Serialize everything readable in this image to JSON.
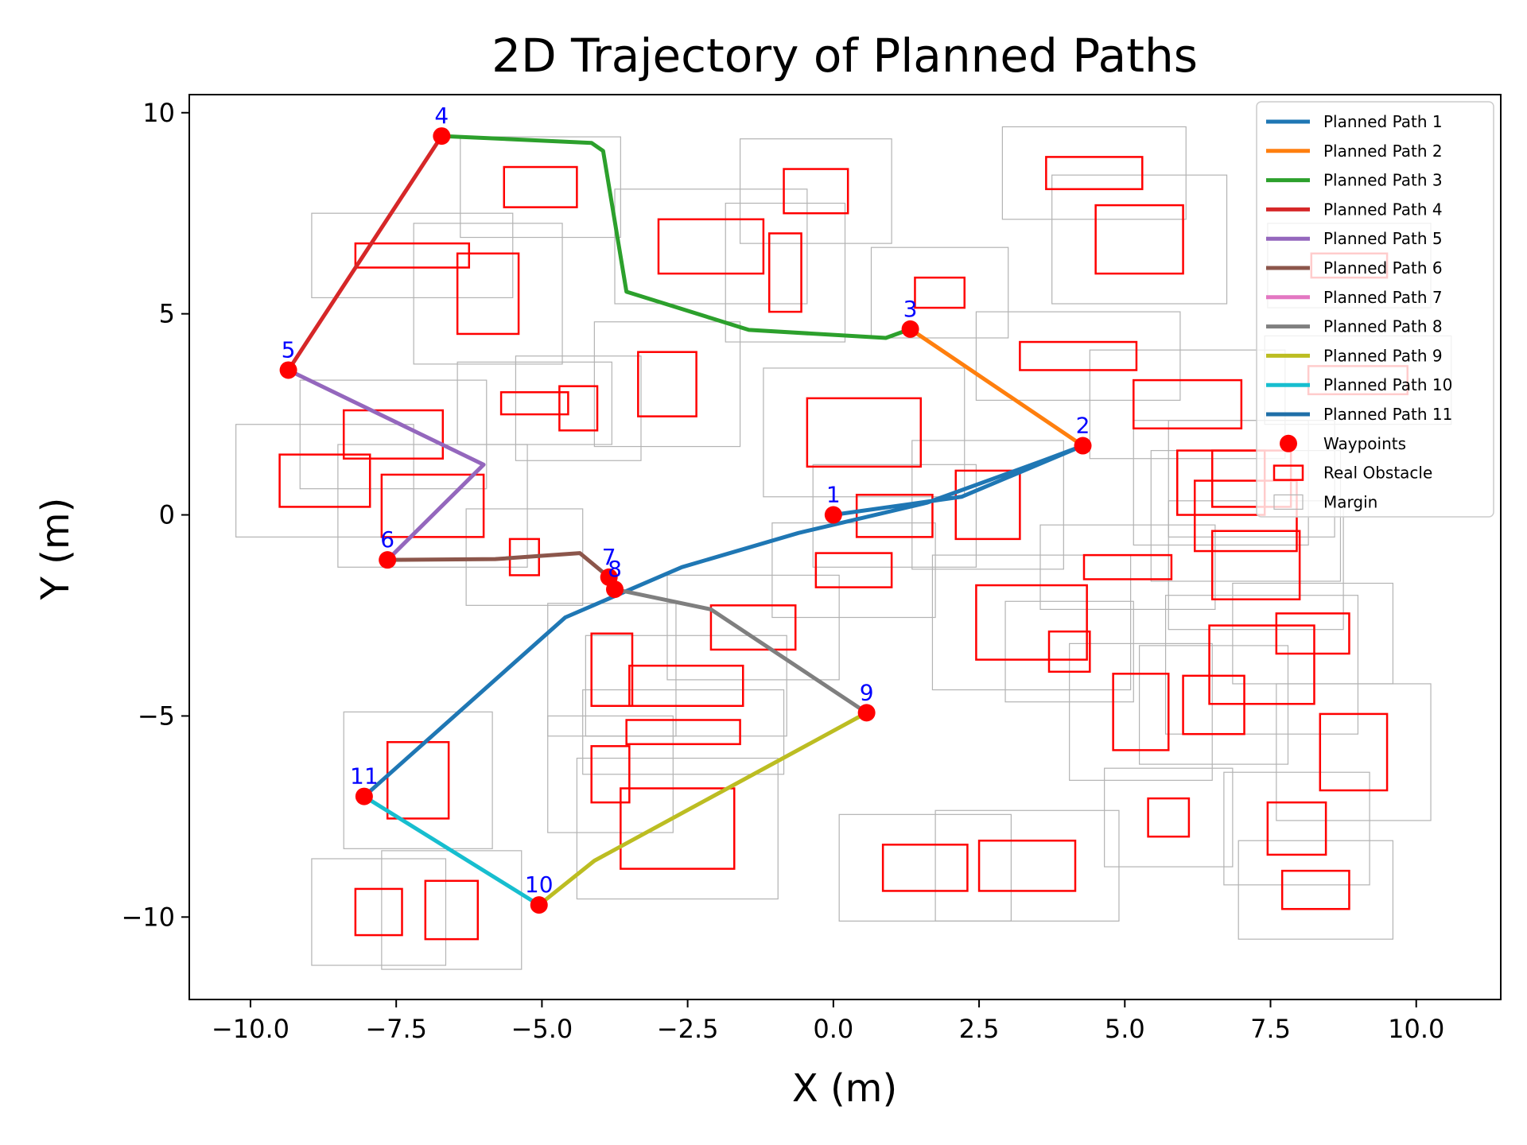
{
  "chart_data": {
    "type": "line",
    "title": "2D Trajectory of Planned Paths",
    "xlabel": "X (m)",
    "ylabel": "Y (m)",
    "xlim": [
      -11.05,
      11.45
    ],
    "ylim": [
      -12.05,
      10.45
    ],
    "xticks": [
      -10,
      -7.5,
      -5,
      -2.5,
      0,
      2.5,
      5,
      7.5,
      10
    ],
    "xtick_labels": [
      "−10.0",
      "−7.5",
      "−5.0",
      "−2.5",
      "0.0",
      "2.5",
      "5.0",
      "7.5",
      "10.0"
    ],
    "yticks": [
      10,
      5,
      0,
      -5,
      -10
    ],
    "ytick_labels": [
      "10",
      "5",
      "0",
      "−5",
      "−10"
    ],
    "grid": false,
    "legend_position": "top-right",
    "series": [
      {
        "name": "Planned Path 1",
        "color": "#1f77b4",
        "points": [
          [
            0,
            0
          ],
          [
            2.2,
            0.45
          ],
          [
            4.28,
            1.72
          ],
          [
            3.6,
            1.35
          ],
          [
            1.6,
            0.3
          ],
          [
            -0.6,
            -0.45
          ],
          [
            -2.6,
            -1.3
          ],
          [
            -4.6,
            -2.55
          ],
          [
            -8.05,
            -7.0
          ]
        ]
      },
      {
        "name": "Planned Path 2",
        "color": "#ff7f0e",
        "points": [
          [
            4.28,
            1.72
          ],
          [
            1.32,
            4.62
          ]
        ]
      },
      {
        "name": "Planned Path 3",
        "color": "#2ca02c",
        "points": [
          [
            1.32,
            4.62
          ],
          [
            0.9,
            4.4
          ],
          [
            -1.45,
            4.6
          ],
          [
            -3.55,
            5.55
          ],
          [
            -3.95,
            9.05
          ],
          [
            -4.15,
            9.25
          ],
          [
            -6.72,
            9.42
          ]
        ]
      },
      {
        "name": "Planned Path 4",
        "color": "#d62728",
        "points": [
          [
            -6.72,
            9.42
          ],
          [
            -9.35,
            3.6
          ]
        ]
      },
      {
        "name": "Planned Path 5",
        "color": "#9467bd",
        "points": [
          [
            -9.35,
            3.6
          ],
          [
            -6.0,
            1.25
          ],
          [
            -7.65,
            -1.12
          ]
        ]
      },
      {
        "name": "Planned Path 6",
        "color": "#8c564b",
        "points": [
          [
            -7.65,
            -1.12
          ],
          [
            -5.8,
            -1.1
          ],
          [
            -4.35,
            -0.95
          ],
          [
            -3.85,
            -1.55
          ]
        ]
      },
      {
        "name": "Planned Path 7",
        "color": "#e377c2",
        "points": [
          [
            -3.85,
            -1.55
          ],
          [
            -3.75,
            -1.85
          ]
        ]
      },
      {
        "name": "Planned Path 8",
        "color": "#7f7f7f",
        "points": [
          [
            -3.75,
            -1.85
          ],
          [
            -2.1,
            -2.35
          ],
          [
            0.57,
            -4.92
          ]
        ]
      },
      {
        "name": "Planned Path 9",
        "color": "#bcbd22",
        "points": [
          [
            0.57,
            -4.92
          ],
          [
            -4.1,
            -8.6
          ],
          [
            -5.05,
            -9.7
          ]
        ]
      },
      {
        "name": "Planned Path 10",
        "color": "#17becf",
        "points": [
          [
            -5.05,
            -9.7
          ],
          [
            -8.05,
            -7.0
          ]
        ]
      },
      {
        "name": "Planned Path 11",
        "color": "#1f6fa8",
        "points": []
      }
    ],
    "waypoints": {
      "name": "Waypoints",
      "color": "#ff0000",
      "points": [
        {
          "label": "1",
          "x": 0.0,
          "y": 0.0
        },
        {
          "label": "2",
          "x": 4.28,
          "y": 1.72
        },
        {
          "label": "3",
          "x": 1.32,
          "y": 4.62
        },
        {
          "label": "4",
          "x": -6.72,
          "y": 9.42
        },
        {
          "label": "5",
          "x": -9.35,
          "y": 3.6
        },
        {
          "label": "6",
          "x": -7.65,
          "y": -1.12
        },
        {
          "label": "7",
          "x": -3.85,
          "y": -1.55
        },
        {
          "label": "8",
          "x": -3.75,
          "y": -1.85
        },
        {
          "label": "9",
          "x": 0.57,
          "y": -4.92
        },
        {
          "label": "10",
          "x": -5.05,
          "y": -9.7
        },
        {
          "label": "11",
          "x": -8.05,
          "y": -7.0
        }
      ]
    },
    "obstacles": {
      "name": "Real Obstacle",
      "color": "#ff0000",
      "margin_name": "Margin",
      "margin_color": "#b3b3b3",
      "margin": 0.75,
      "rects": [
        [
          -5.65,
          7.65,
          -4.4,
          8.65
        ],
        [
          -0.85,
          7.5,
          0.25,
          8.6
        ],
        [
          -3.0,
          6.0,
          -1.2,
          7.35
        ],
        [
          -1.1,
          5.05,
          -0.55,
          7.0
        ],
        [
          -8.2,
          6.15,
          -6.25,
          6.75
        ],
        [
          -6.45,
          4.5,
          -5.4,
          6.5
        ],
        [
          1.4,
          5.15,
          2.25,
          5.9
        ],
        [
          3.65,
          8.1,
          5.3,
          8.9
        ],
        [
          4.5,
          6.0,
          6.0,
          7.7
        ],
        [
          8.2,
          5.9,
          9.5,
          6.5
        ],
        [
          3.2,
          3.6,
          5.2,
          4.3
        ],
        [
          5.15,
          2.15,
          7.0,
          3.35
        ],
        [
          8.15,
          3.0,
          9.85,
          3.7
        ],
        [
          -3.35,
          2.45,
          -2.35,
          4.05
        ],
        [
          -5.7,
          2.5,
          -4.55,
          3.05
        ],
        [
          -4.7,
          2.1,
          -4.05,
          3.2
        ],
        [
          -0.45,
          1.2,
          1.5,
          2.9
        ],
        [
          -8.4,
          1.4,
          -6.7,
          2.6
        ],
        [
          -9.5,
          0.2,
          -7.95,
          1.5
        ],
        [
          -7.75,
          -0.55,
          -6.0,
          1.0
        ],
        [
          0.4,
          -0.55,
          1.7,
          0.5
        ],
        [
          2.1,
          -0.6,
          3.2,
          1.1
        ],
        [
          5.9,
          0.0,
          7.4,
          1.6
        ],
        [
          6.5,
          0.2,
          7.85,
          1.6
        ],
        [
          6.2,
          -0.9,
          7.95,
          0.85
        ],
        [
          6.5,
          -2.1,
          8.0,
          -0.4
        ],
        [
          -5.55,
          -1.5,
          -5.05,
          -0.6
        ],
        [
          -0.3,
          -1.8,
          1.0,
          -0.95
        ],
        [
          4.3,
          -1.6,
          5.8,
          -1.0
        ],
        [
          -2.1,
          -3.35,
          -0.65,
          -2.25
        ],
        [
          2.45,
          -3.6,
          4.35,
          -1.75
        ],
        [
          3.7,
          -3.9,
          4.4,
          -2.9
        ],
        [
          -4.15,
          -4.75,
          -3.45,
          -2.95
        ],
        [
          -3.5,
          -4.75,
          -1.55,
          -3.75
        ],
        [
          -3.55,
          -5.7,
          -1.6,
          -5.1
        ],
        [
          -4.15,
          -7.15,
          -3.5,
          -5.75
        ],
        [
          -3.65,
          -8.8,
          -1.7,
          -6.8
        ],
        [
          -7.65,
          -7.55,
          -6.6,
          -5.65
        ],
        [
          4.8,
          -5.85,
          5.75,
          -3.95
        ],
        [
          6.0,
          -5.45,
          7.05,
          -4.0
        ],
        [
          6.45,
          -4.7,
          8.25,
          -2.75
        ],
        [
          7.6,
          -3.45,
          8.85,
          -2.45
        ],
        [
          8.35,
          -6.85,
          9.5,
          -4.95
        ],
        [
          5.4,
          -8.0,
          6.1,
          -7.05
        ],
        [
          7.45,
          -8.45,
          8.45,
          -7.15
        ],
        [
          7.7,
          -9.8,
          8.85,
          -8.85
        ],
        [
          0.85,
          -9.35,
          2.3,
          -8.2
        ],
        [
          2.5,
          -9.35,
          4.15,
          -8.1
        ],
        [
          -8.2,
          -10.45,
          -7.4,
          -9.3
        ],
        [
          -7.0,
          -10.55,
          -6.1,
          -9.1
        ]
      ]
    }
  }
}
